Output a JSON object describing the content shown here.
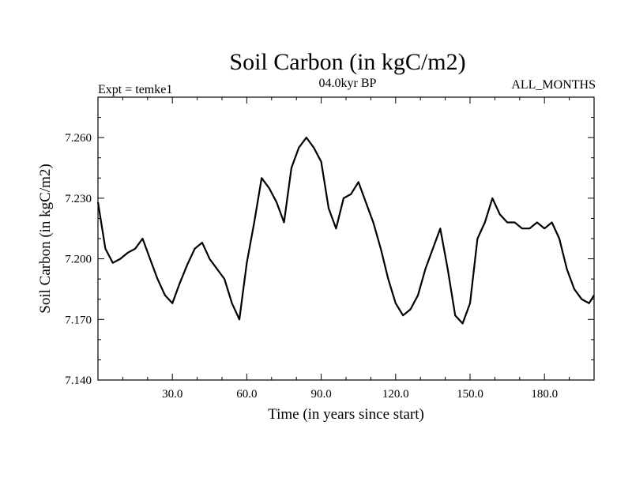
{
  "chart_data": {
    "type": "line",
    "title": "Soil Carbon (in kgC/m2)",
    "subtitle_left": "Expt = temke1",
    "subtitle_center": "04.0kyr BP",
    "subtitle_right": "ALL_MONTHS",
    "xlabel": "Time (in years since start)",
    "ylabel": "Soil Carbon (in kgC/m2)",
    "xlim": [
      0,
      200
    ],
    "ylim": [
      7.14,
      7.28
    ],
    "x_ticks": [
      30,
      60,
      90,
      120,
      150,
      180
    ],
    "x_tick_labels": [
      "30.0",
      "60.0",
      "90.0",
      "120.0",
      "150.0",
      "180.0"
    ],
    "y_ticks": [
      7.14,
      7.17,
      7.2,
      7.23,
      7.26
    ],
    "y_tick_labels": [
      "7.140",
      "7.170",
      "7.200",
      "7.230",
      "7.260"
    ],
    "grid": false,
    "legend": "none",
    "line_color": "#000000",
    "series": [
      {
        "x": [
          0,
          3,
          6,
          9,
          12,
          15,
          18,
          21,
          24,
          27,
          30,
          33,
          36,
          39,
          42,
          45,
          48,
          51,
          54,
          57,
          60,
          63,
          66,
          69,
          72,
          75,
          78,
          81,
          84,
          87,
          90,
          93,
          96,
          99,
          102,
          105,
          108,
          111,
          114,
          117,
          120,
          123,
          126,
          129,
          132,
          135,
          138,
          141,
          144,
          147,
          150,
          153,
          156,
          159,
          162,
          165,
          168,
          171,
          174,
          177,
          180,
          183,
          186,
          189,
          192,
          195,
          198,
          200
        ],
        "y": [
          7.228,
          7.205,
          7.198,
          7.2,
          7.203,
          7.205,
          7.21,
          7.2,
          7.19,
          7.182,
          7.178,
          7.188,
          7.197,
          7.205,
          7.208,
          7.2,
          7.195,
          7.19,
          7.178,
          7.17,
          7.198,
          7.218,
          7.24,
          7.235,
          7.228,
          7.218,
          7.245,
          7.255,
          7.26,
          7.255,
          7.248,
          7.225,
          7.215,
          7.23,
          7.232,
          7.238,
          7.228,
          7.218,
          7.205,
          7.19,
          7.178,
          7.172,
          7.175,
          7.182,
          7.195,
          7.205,
          7.215,
          7.195,
          7.172,
          7.168,
          7.178,
          7.21,
          7.218,
          7.23,
          7.222,
          7.218,
          7.218,
          7.215,
          7.215,
          7.218,
          7.215,
          7.218,
          7.21,
          7.195,
          7.185,
          7.18,
          7.178,
          7.182
        ]
      }
    ]
  }
}
